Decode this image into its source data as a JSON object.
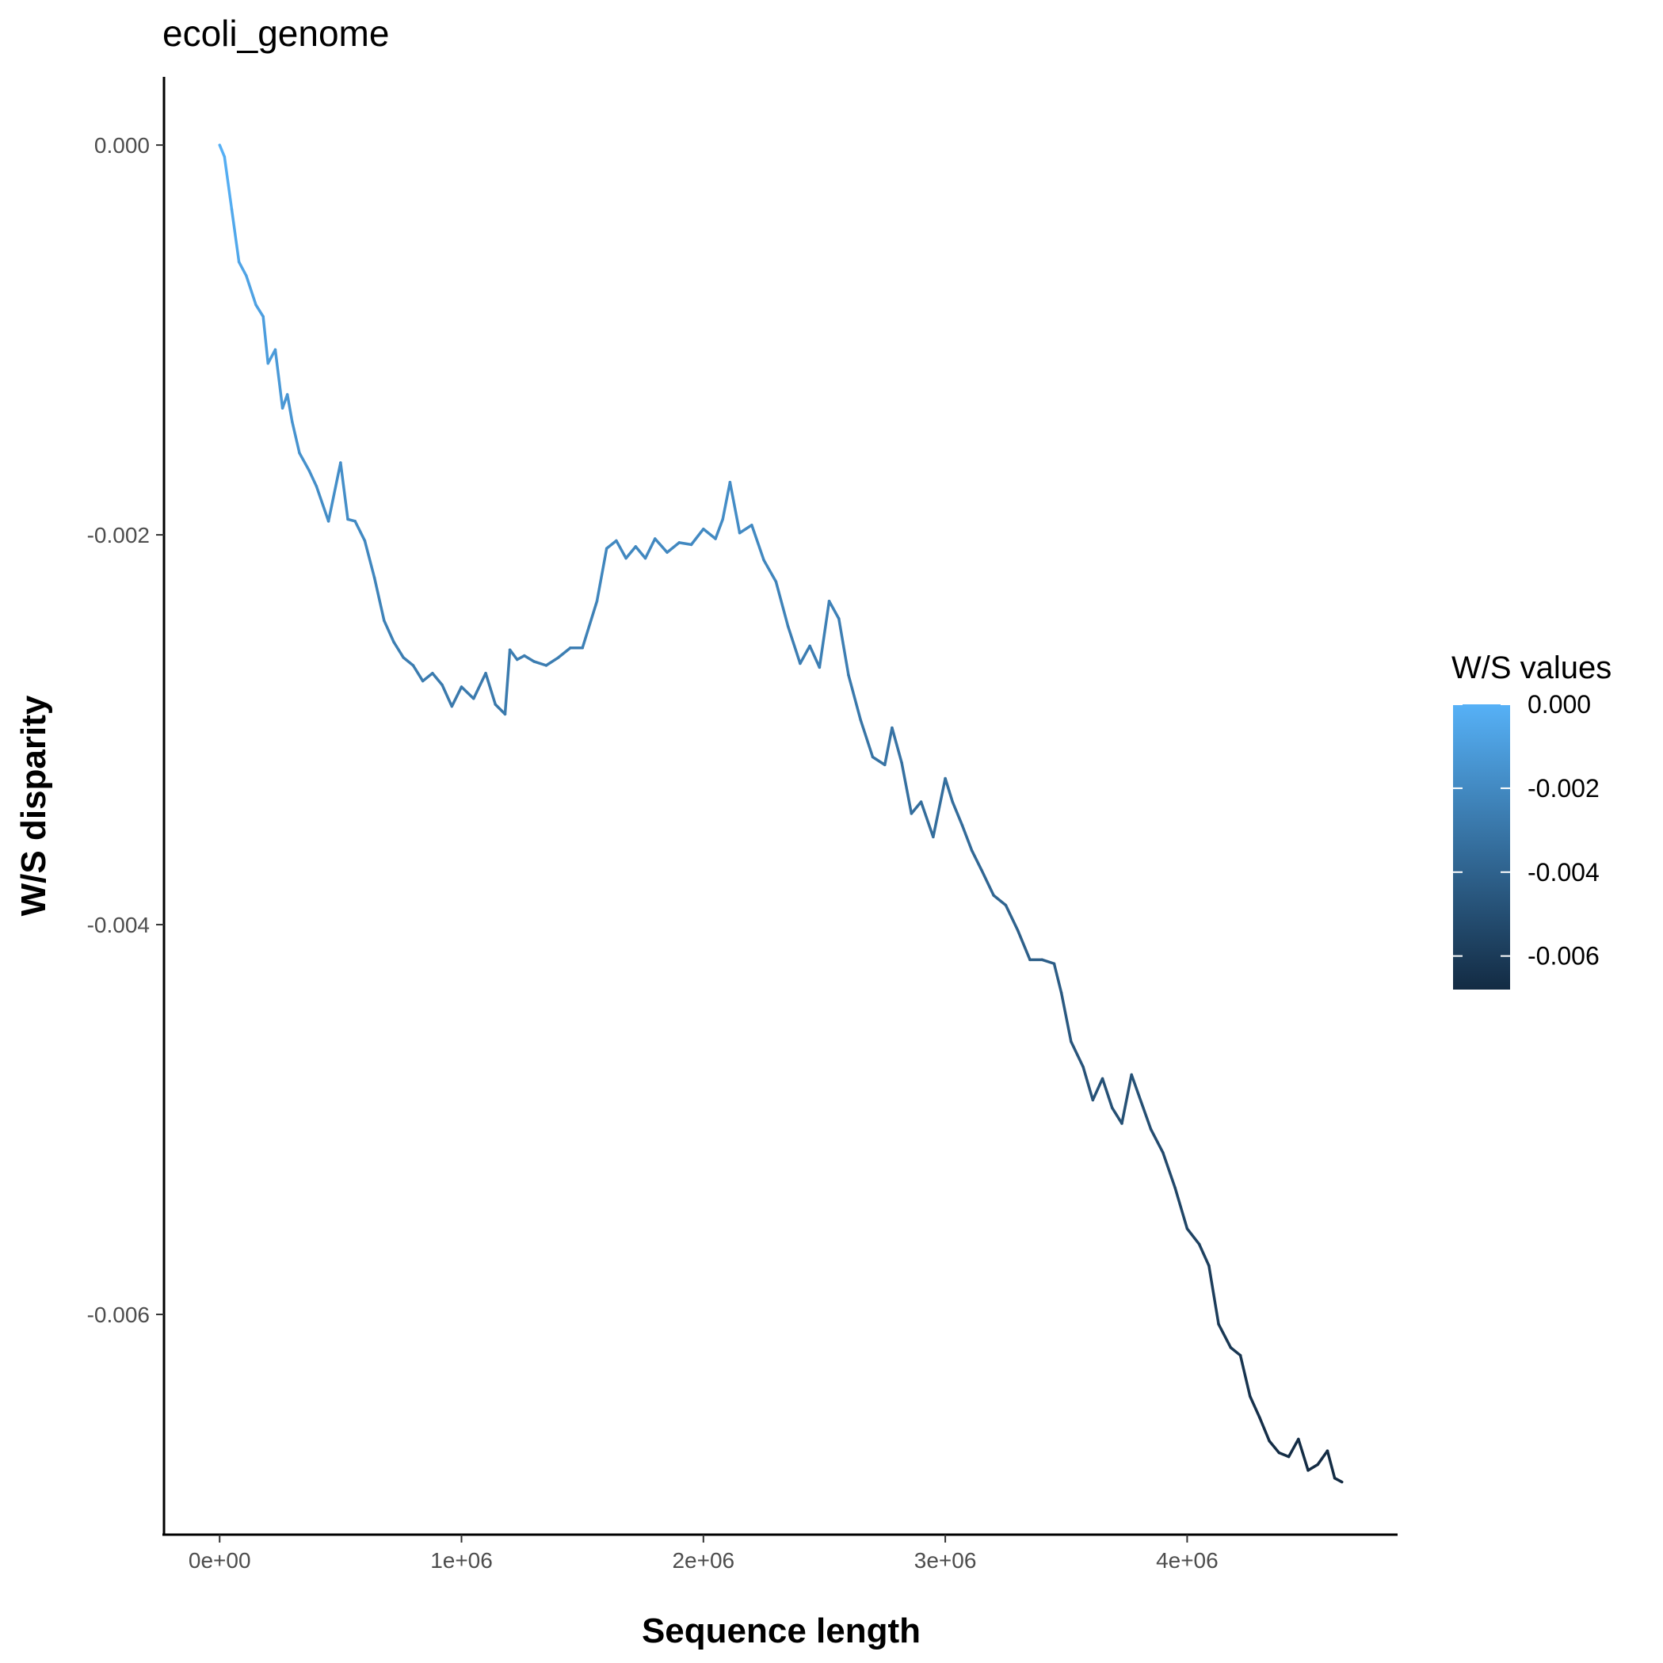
{
  "chart_data": {
    "type": "line",
    "title": "ecoli_genome",
    "xlabel": "Sequence length",
    "ylabel": "W/S disparity",
    "xlim": [
      -230000,
      4870000
    ],
    "ylim": [
      -0.00713,
      0.00035
    ],
    "x_ticks": [
      {
        "value": 0,
        "label": "0e+00"
      },
      {
        "value": 1000000,
        "label": "1e+06"
      },
      {
        "value": 2000000,
        "label": "2e+06"
      },
      {
        "value": 3000000,
        "label": "3e+06"
      },
      {
        "value": 4000000,
        "label": "4e+06"
      }
    ],
    "y_ticks": [
      {
        "value": 0,
        "label": "0.000"
      },
      {
        "value": -0.002,
        "label": "-0.002"
      },
      {
        "value": -0.004,
        "label": "-0.004"
      },
      {
        "value": -0.006,
        "label": "-0.006"
      }
    ],
    "grid": false,
    "series": [
      {
        "color_scale": [
          "#132b43",
          "#56b1f7"
        ],
        "x": [
          0,
          20000,
          50000,
          80000,
          110000,
          150000,
          180000,
          200000,
          230000,
          260000,
          280000,
          300000,
          330000,
          370000,
          400000,
          450000,
          500000,
          530000,
          560000,
          600000,
          640000,
          680000,
          720000,
          760000,
          800000,
          840000,
          880000,
          920000,
          960000,
          1000000,
          1050000,
          1100000,
          1140000,
          1180000,
          1200000,
          1230000,
          1260000,
          1300000,
          1350000,
          1400000,
          1450000,
          1500000,
          1560000,
          1600000,
          1640000,
          1680000,
          1720000,
          1760000,
          1800000,
          1850000,
          1900000,
          1950000,
          2000000,
          2050000,
          2080000,
          2110000,
          2150000,
          2200000,
          2250000,
          2300000,
          2350000,
          2400000,
          2440000,
          2480000,
          2520000,
          2560000,
          2600000,
          2650000,
          2700000,
          2750000,
          2780000,
          2820000,
          2860000,
          2900000,
          2950000,
          3000000,
          3030000,
          3070000,
          3110000,
          3150000,
          3200000,
          3250000,
          3300000,
          3350000,
          3400000,
          3450000,
          3480000,
          3520000,
          3570000,
          3610000,
          3650000,
          3690000,
          3730000,
          3770000,
          3810000,
          3850000,
          3900000,
          3950000,
          4000000,
          4050000,
          4090000,
          4130000,
          4180000,
          4220000,
          4260000,
          4300000,
          4340000,
          4380000,
          4420000,
          4460000,
          4500000,
          4540000,
          4580000,
          4610000,
          4640000
        ],
        "y": [
          0,
          -6e-05,
          -0.00033,
          -0.0006,
          -0.00067,
          -0.00082,
          -0.00088,
          -0.00112,
          -0.00105,
          -0.00135,
          -0.00128,
          -0.00142,
          -0.00158,
          -0.00167,
          -0.00175,
          -0.00193,
          -0.00163,
          -0.00192,
          -0.00193,
          -0.00203,
          -0.00222,
          -0.00244,
          -0.00255,
          -0.00263,
          -0.00267,
          -0.00275,
          -0.00271,
          -0.00277,
          -0.00288,
          -0.00278,
          -0.00284,
          -0.00271,
          -0.00287,
          -0.00292,
          -0.00259,
          -0.00264,
          -0.00262,
          -0.00265,
          -0.00267,
          -0.00263,
          -0.00258,
          -0.00258,
          -0.00234,
          -0.00207,
          -0.00203,
          -0.00212,
          -0.00206,
          -0.00212,
          -0.00202,
          -0.00209,
          -0.00204,
          -0.00205,
          -0.00197,
          -0.00202,
          -0.00192,
          -0.00173,
          -0.00199,
          -0.00195,
          -0.00213,
          -0.00224,
          -0.00247,
          -0.00266,
          -0.00257,
          -0.00268,
          -0.00234,
          -0.00243,
          -0.00272,
          -0.00295,
          -0.00314,
          -0.00318,
          -0.00299,
          -0.00317,
          -0.00343,
          -0.00337,
          -0.00355,
          -0.00325,
          -0.00337,
          -0.00349,
          -0.00362,
          -0.00372,
          -0.00385,
          -0.0039,
          -0.00403,
          -0.00418,
          -0.00418,
          -0.0042,
          -0.00435,
          -0.0046,
          -0.00473,
          -0.0049,
          -0.00479,
          -0.00494,
          -0.00502,
          -0.00477,
          -0.00491,
          -0.00505,
          -0.00517,
          -0.00535,
          -0.00556,
          -0.00564,
          -0.00575,
          -0.00605,
          -0.00617,
          -0.00621,
          -0.00642,
          -0.00653,
          -0.00665,
          -0.00671,
          -0.00673,
          -0.00664,
          -0.0068,
          -0.00677,
          -0.0067,
          -0.00684,
          -0.00686
        ]
      }
    ],
    "legend": {
      "title": "W/S values",
      "placement": "right",
      "range": [
        -0.0068,
        0.0
      ],
      "labels": [
        {
          "value": 0,
          "label": "0.000"
        },
        {
          "value": -0.002,
          "label": "-0.002"
        },
        {
          "value": -0.004,
          "label": "-0.004"
        },
        {
          "value": -0.006,
          "label": "-0.006"
        }
      ],
      "colors": [
        "#132b43",
        "#56b1f7"
      ]
    }
  }
}
